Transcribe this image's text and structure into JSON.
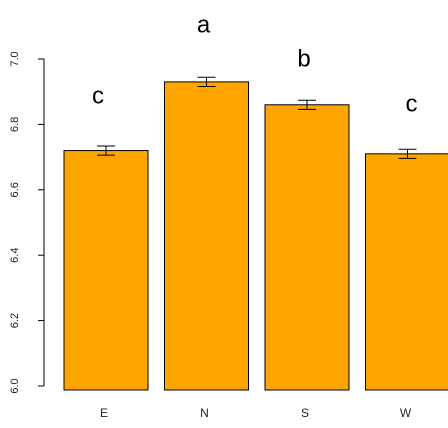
{
  "chart_data": {
    "type": "bar",
    "title": "",
    "xlabel": "",
    "ylabel": "",
    "categories": [
      "E",
      "N",
      "S",
      "W"
    ],
    "values": [
      6.72,
      6.93,
      6.86,
      6.71
    ],
    "error": [
      0.014,
      0.014,
      0.014,
      0.014
    ],
    "significance_labels": [
      "c",
      "a",
      "b",
      "c"
    ],
    "ylim": [
      6.0,
      7.0
    ],
    "yticks": [
      6.0,
      6.2,
      6.4,
      6.6,
      6.8,
      7.0
    ],
    "ytick_labels": [
      "6.0",
      "6.2",
      "6.4",
      "6.6",
      "6.8",
      "7.0"
    ],
    "bar_color": "#FFA500",
    "bar_edge_color": "#000000",
    "grid": false,
    "legend": "none"
  }
}
